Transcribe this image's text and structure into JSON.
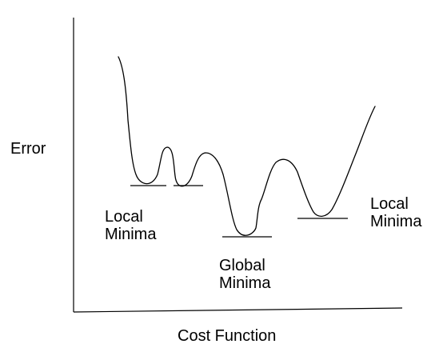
{
  "diagram": {
    "y_axis_label": "Error",
    "x_axis_label": "Cost Function",
    "annotations": {
      "local_minima_left": {
        "line1": "Local",
        "line2": "Minima"
      },
      "global_minima": {
        "line1": "Global",
        "line2": "Minima"
      },
      "local_minima_right": {
        "line1": "Local",
        "line2": "Minima"
      }
    },
    "colors": {
      "stroke": "#000000",
      "background": "#ffffff"
    }
  }
}
